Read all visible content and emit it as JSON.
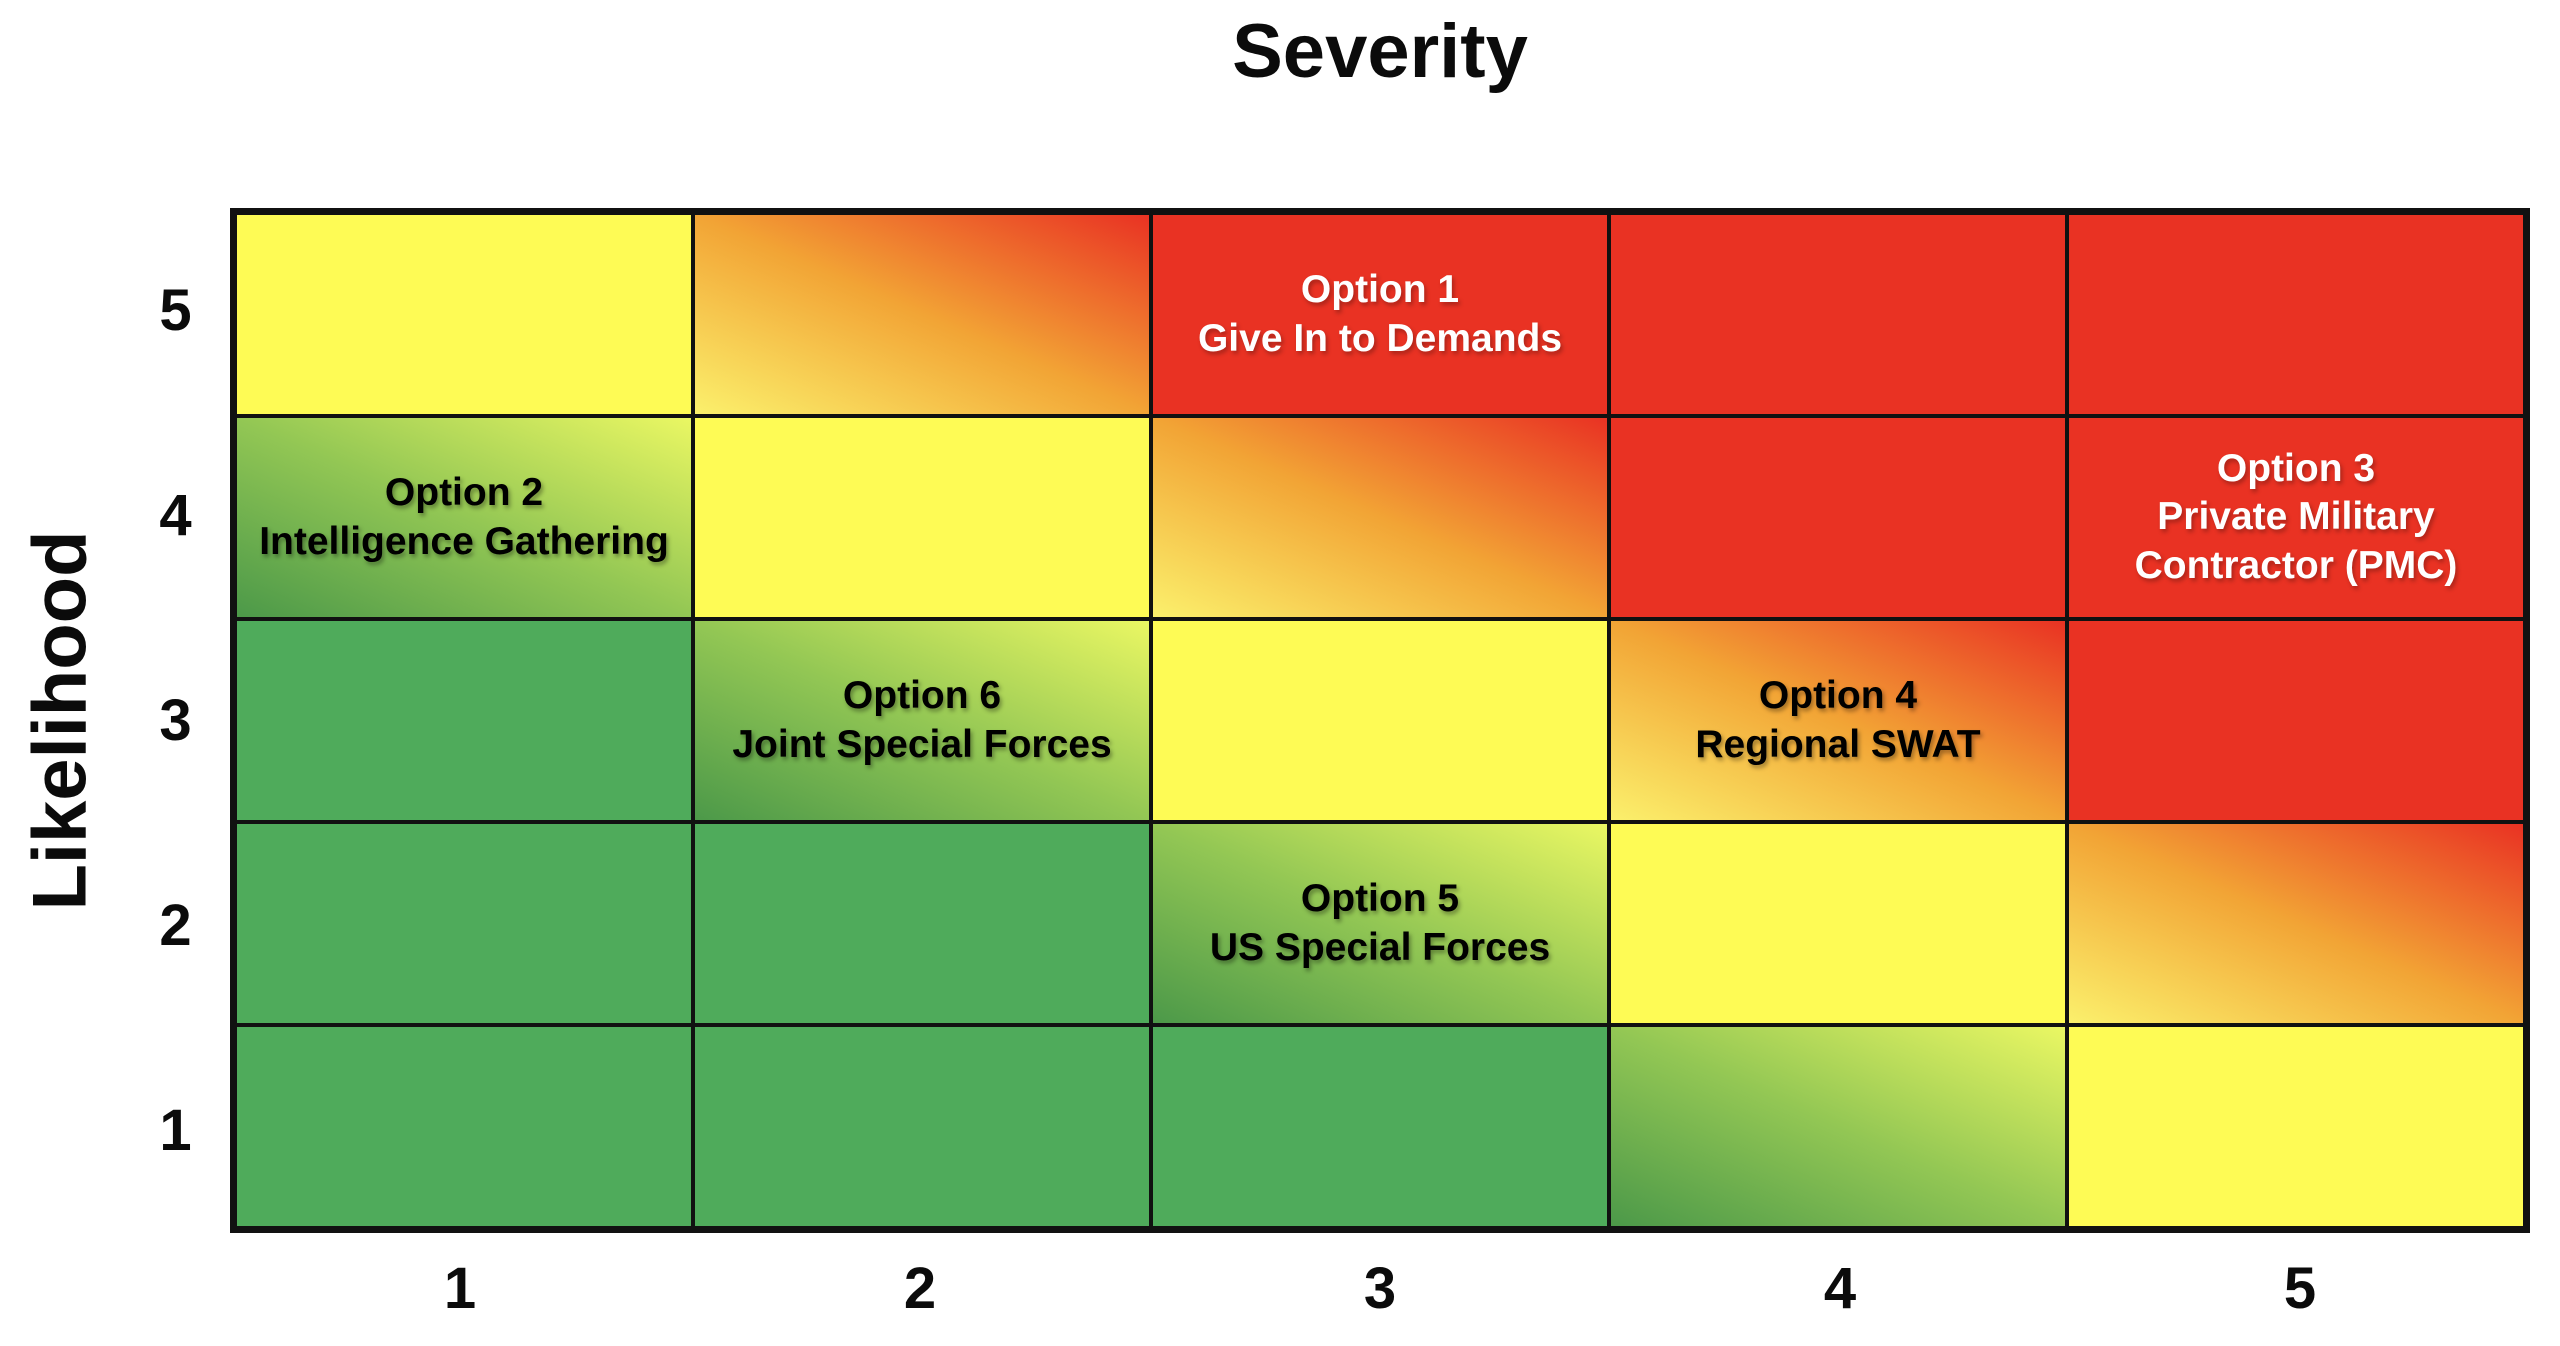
{
  "title": "Severity",
  "y_axis_title": "Likelihood",
  "chart_data": {
    "type": "heatmap",
    "title": "Severity",
    "xlabel": "Severity",
    "ylabel": "Likelihood",
    "x_axis": {
      "ticks": [
        "1",
        "2",
        "3",
        "4",
        "5"
      ]
    },
    "y_axis": {
      "ticks_top_to_bottom": [
        "5",
        "4",
        "3",
        "2",
        "1"
      ]
    },
    "grid_on": true,
    "legend": "none",
    "color_scale": {
      "green": "#4FAB5B",
      "yellow": "#FEFB55",
      "red": "#E93223",
      "green_gradient": [
        "#4C9949",
        "#93C754",
        "#EAF763"
      ],
      "orange_gradient": [
        "#FBF06C",
        "#F2A435",
        "#E93223"
      ]
    },
    "cells_top_to_bottom": [
      {
        "likelihood": 5,
        "colors": [
          "yellow",
          "orange_gradient",
          "red",
          "red",
          "red"
        ]
      },
      {
        "likelihood": 4,
        "colors": [
          "green_gradient",
          "yellow",
          "orange_gradient",
          "red",
          "red"
        ]
      },
      {
        "likelihood": 3,
        "colors": [
          "green",
          "green_gradient",
          "yellow",
          "orange_gradient",
          "red"
        ]
      },
      {
        "likelihood": 2,
        "colors": [
          "green",
          "green",
          "green_gradient",
          "yellow",
          "orange_gradient"
        ]
      },
      {
        "likelihood": 1,
        "colors": [
          "green",
          "green",
          "green",
          "green_gradient",
          "yellow"
        ]
      }
    ],
    "annotations": [
      {
        "likelihood": 5,
        "severity": 3,
        "lines": [
          "Option 1",
          "Give In to Demands"
        ],
        "text_color": "white"
      },
      {
        "likelihood": 4,
        "severity": 1,
        "lines": [
          "Option 2",
          "Intelligence Gathering"
        ],
        "text_color": "black"
      },
      {
        "likelihood": 4,
        "severity": 5,
        "lines": [
          "Option 3",
          "Private Military",
          "Contractor (PMC)"
        ],
        "text_color": "white"
      },
      {
        "likelihood": 3,
        "severity": 2,
        "lines": [
          "Option 6",
          "Joint Special Forces"
        ],
        "text_color": "black"
      },
      {
        "likelihood": 3,
        "severity": 4,
        "lines": [
          "Option 4",
          "Regional SWAT"
        ],
        "text_color": "black"
      },
      {
        "likelihood": 2,
        "severity": 3,
        "lines": [
          "Option 5",
          "US Special Forces"
        ],
        "text_color": "black"
      }
    ]
  }
}
